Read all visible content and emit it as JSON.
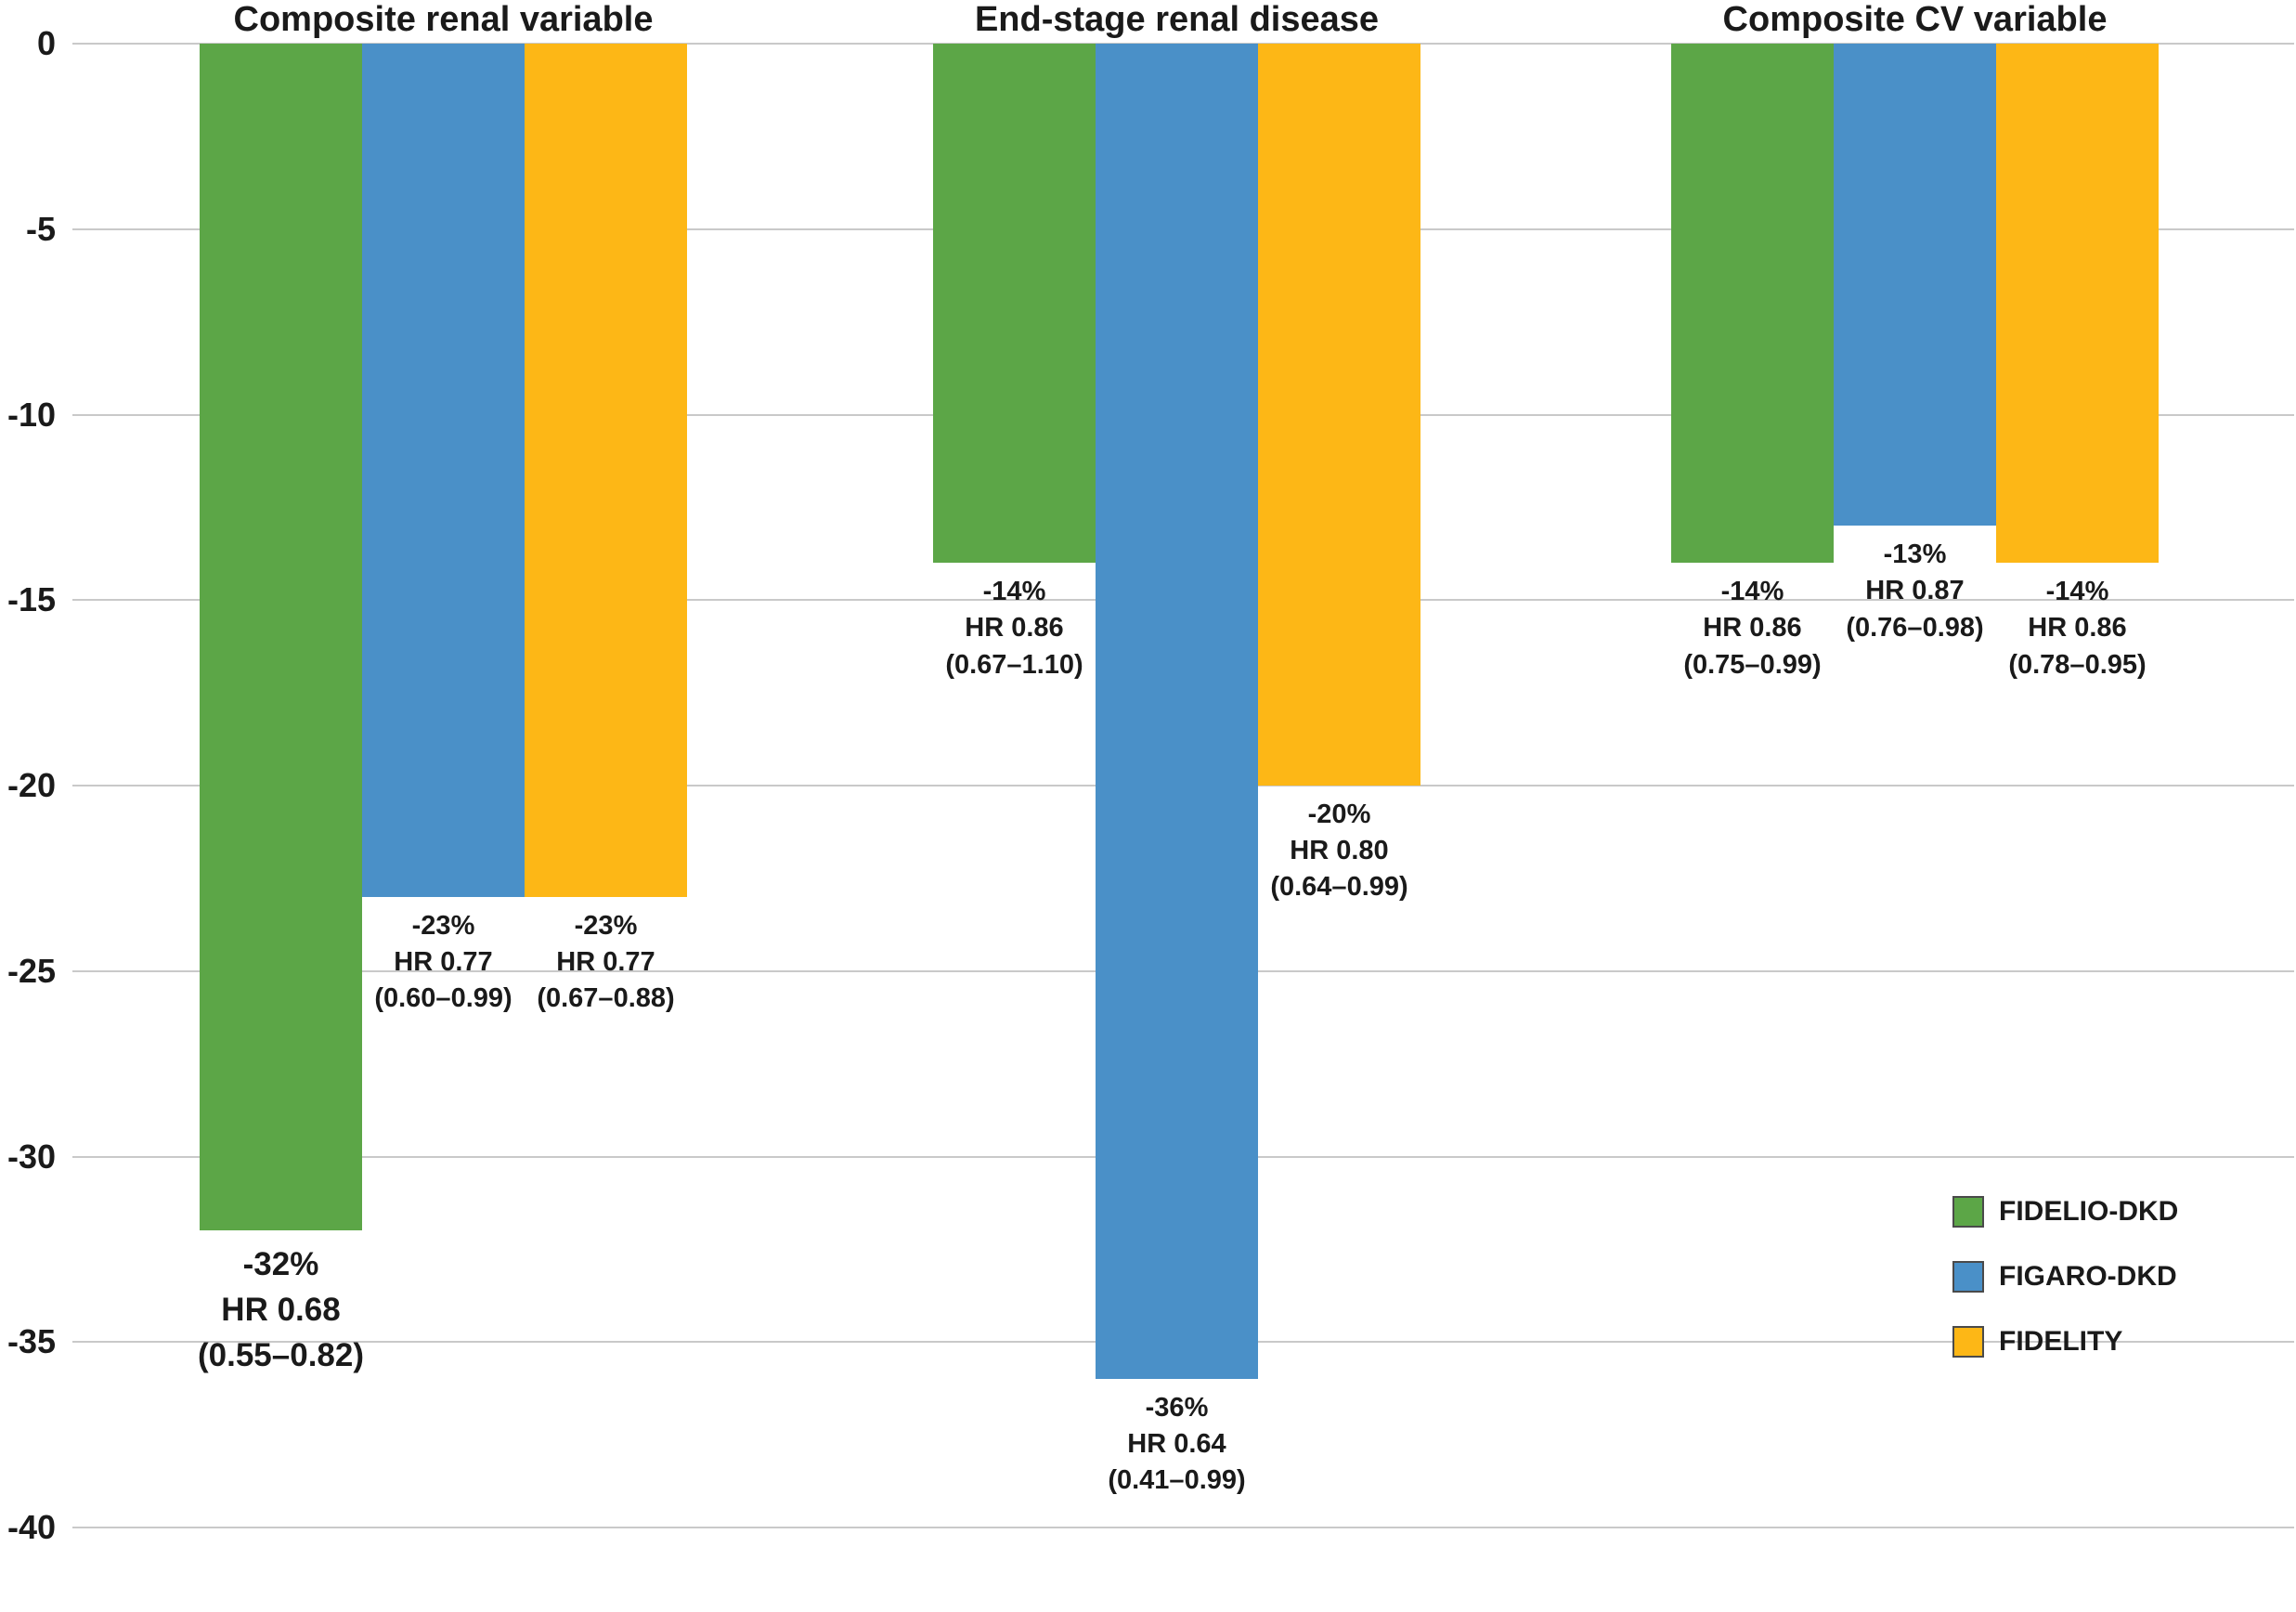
{
  "chart_data": {
    "type": "bar",
    "title": "",
    "xlabel": "",
    "ylabel": "",
    "ylim": [
      -40,
      0
    ],
    "yticks": [
      0,
      -5,
      -10,
      -15,
      -20,
      -25,
      -30,
      -35,
      -40
    ],
    "grid": true,
    "legend_position": "right-bottom",
    "series_colors": {
      "FIDELIO-DKD": "#5ca647",
      "FIGARO-DKD": "#4a90c8",
      "FIDELITY": "#fdb716"
    },
    "groups": [
      {
        "title": "Composite renal variable",
        "bars": [
          {
            "series": "FIDELIO-DKD",
            "value": -32,
            "hr": "0.68",
            "ci": "(0.55–0.82)",
            "label_lines": [
              "-32%",
              "HR 0.68",
              "(0.55–0.82)"
            ]
          },
          {
            "series": "FIGARO-DKD",
            "value": -23,
            "hr": "0.77",
            "ci": "(0.60–0.99)",
            "label_lines": [
              "-23%",
              "HR 0.77",
              "(0.60–0.99)"
            ]
          },
          {
            "series": "FIDELITY",
            "value": -23,
            "hr": "0.77",
            "ci": "(0.67–0.88)",
            "label_lines": [
              "-23%",
              "HR 0.77",
              "(0.67–0.88)"
            ]
          }
        ]
      },
      {
        "title": "End-stage renal disease",
        "bars": [
          {
            "series": "FIDELIO-DKD",
            "value": -14,
            "hr": "0.86",
            "ci": "(0.67–1.10)",
            "label_lines": [
              "-14%",
              "HR 0.86",
              "(0.67–1.10)"
            ]
          },
          {
            "series": "FIGARO-DKD",
            "value": -36,
            "hr": "0.64",
            "ci": "(0.41–0.99)",
            "label_lines": [
              "-36%",
              "HR 0.64",
              "(0.41–0.99)"
            ]
          },
          {
            "series": "FIDELITY",
            "value": -20,
            "hr": "0.80",
            "ci": "(0.64–0.99)",
            "label_lines": [
              "-20%",
              "HR 0.80",
              "(0.64–0.99)"
            ]
          }
        ]
      },
      {
        "title": "Composite CV variable",
        "bars": [
          {
            "series": "FIDELIO-DKD",
            "value": -14,
            "hr": "0.86",
            "ci": "(0.75–0.99)",
            "label_lines": [
              "-14%",
              "HR 0.86",
              "(0.75–0.99)"
            ]
          },
          {
            "series": "FIGARO-DKD",
            "value": -13,
            "hr": "0.87",
            "ci": "(0.76–0.98)",
            "label_lines": [
              "-13%",
              "HR 0.87",
              "(0.76–0.98)"
            ]
          },
          {
            "series": "FIDELITY",
            "value": -14,
            "hr": "0.86",
            "ci": "(0.78–0.95)",
            "label_lines": [
              "-14%",
              "HR 0.86",
              "(0.78–0.95)"
            ]
          }
        ]
      }
    ],
    "legend": [
      {
        "label": "FIDELIO-DKD",
        "color": "#5ca647"
      },
      {
        "label": "FIGARO-DKD",
        "color": "#4a90c8"
      },
      {
        "label": "FIDELITY",
        "color": "#fdb716"
      }
    ]
  }
}
